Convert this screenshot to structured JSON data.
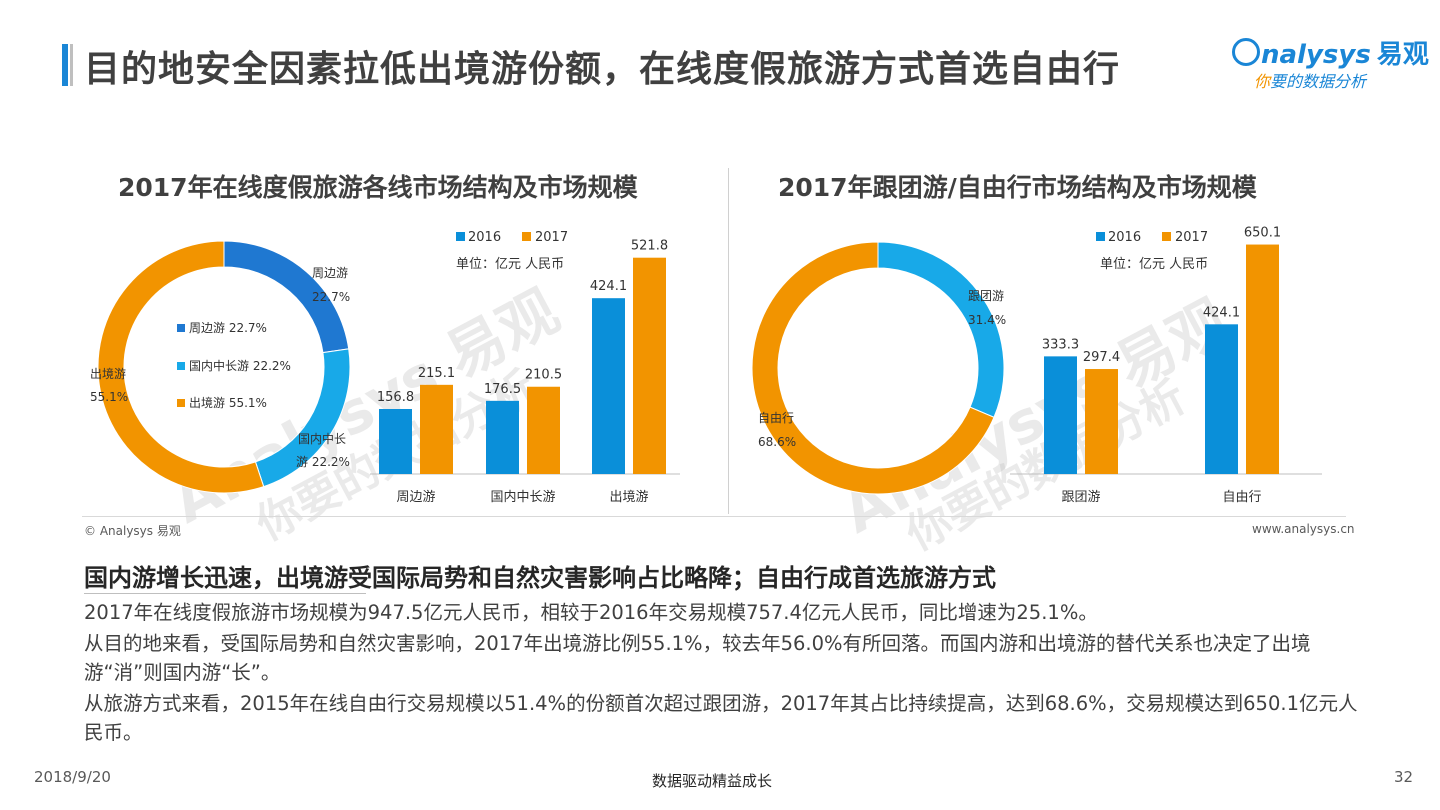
{
  "header": {
    "title": "目的地安全因素拉低出境游份额，在线度假旅游方式首选自由行",
    "logo_brand": "nalysys",
    "logo_brand_cn": "易观",
    "logo_slogan_first": "你",
    "logo_slogan_rest": "要的数据分析"
  },
  "watermark": {
    "brand": "Analysys 易观",
    "slogan": "你要的数据分析"
  },
  "colors": {
    "accent": "#1a86d6",
    "y2016": "#0a8fd9",
    "y2017": "#f29400",
    "zhoubian": "#1f78d1",
    "guonei": "#18a9e8",
    "chujing": "#f29400"
  },
  "left_chart": {
    "title": "2017年在线度假旅游各线市场结构及市场规模",
    "donut_labels": {
      "zhoubian_name": "周边游",
      "zhoubian_pct": "22.7%",
      "guonei_name_1": "国内中长",
      "guonei_name_2": "游 22.2%",
      "chujing_name": "出境游",
      "chujing_pct": "55.1%"
    },
    "legend_inner": [
      "周边游 22.7%",
      "国内中长游 22.2%",
      "出境游 55.1%"
    ],
    "bar_legend": [
      "2016",
      "2017"
    ],
    "unit": "单位：亿元 人民币"
  },
  "right_chart": {
    "title": "2017年跟团游/自由行市场结构及市场规模",
    "donut_labels": {
      "gentuan_name": "跟团游",
      "gentuan_pct": "31.4%",
      "ziyou_name": "自由行",
      "ziyou_pct": "68.6%"
    },
    "bar_legend": [
      "2016",
      "2017"
    ],
    "unit": "单位：亿元 人民币"
  },
  "chart_data": [
    {
      "type": "pie",
      "title": "2017年在线度假旅游各线市场结构及市场规模",
      "categories": [
        "周边游",
        "国内中长游",
        "出境游"
      ],
      "values": [
        22.7,
        22.2,
        55.1
      ]
    },
    {
      "type": "bar",
      "categories": [
        "周边游",
        "国内中长游",
        "出境游"
      ],
      "series": [
        {
          "name": "2016",
          "values": [
            156.8,
            176.5,
            424.1
          ]
        },
        {
          "name": "2017",
          "values": [
            215.1,
            210.5,
            521.8
          ]
        }
      ],
      "ylim": [
        0,
        550
      ]
    },
    {
      "type": "pie",
      "title": "2017年跟团游/自由行市场结构及市场规模",
      "categories": [
        "跟团游",
        "自由行"
      ],
      "values": [
        31.4,
        68.6
      ]
    },
    {
      "type": "bar",
      "categories": [
        "跟团游",
        "自由行"
      ],
      "series": [
        {
          "name": "2016",
          "values": [
            333.3,
            424.1
          ]
        },
        {
          "name": "2017",
          "values": [
            297.4,
            650.1
          ]
        }
      ],
      "ylim": [
        0,
        680
      ]
    }
  ],
  "source": {
    "copyright": "© Analysys 易观",
    "website": "www.analysys.cn"
  },
  "summary": {
    "title": "国内游增长迅速，出境游受国际局势和自然灾害影响占比略降；自由行成首选旅游方式",
    "paragraphs": [
      "2017年在线度假旅游市场规模为947.5亿元人民币，相较于2016年交易规模757.4亿元人民币，同比增速为25.1%。",
      "从目的地来看，受国际局势和自然灾害影响，2017年出境游比例55.1%，较去年56.0%有所回落。而国内游和出境游的替代关系也决定了出境游“消”则国内游“长”。",
      "从旅游方式来看，2015年在线自由行交易规模以51.4%的份额首次超过跟团游，2017年其占比持续提高，达到68.6%，交易规模达到650.1亿元人民币。"
    ]
  },
  "footer": {
    "date": "2018/9/20",
    "center": "数据驱动精益成长",
    "page": "32"
  }
}
